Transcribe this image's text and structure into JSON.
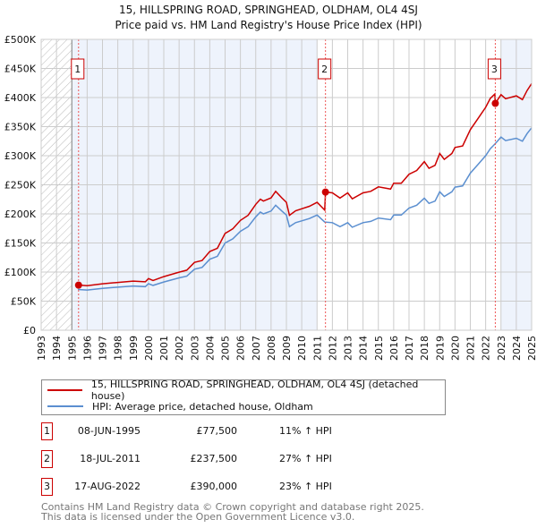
{
  "chart_data": {
    "type": "line",
    "title": "15, HILLSPRING ROAD, SPRINGHEAD, OLDHAM, OL4 4SJ",
    "subtitle": "Price paid vs. HM Land Registry's House Price Index (HPI)",
    "xlim": [
      1993,
      2025
    ],
    "ylim": [
      0,
      500000
    ],
    "x_ticks": [
      "1993",
      "1994",
      "1995",
      "1996",
      "1997",
      "1998",
      "1999",
      "2000",
      "2001",
      "2002",
      "2003",
      "2004",
      "2005",
      "2006",
      "2007",
      "2008",
      "2009",
      "2010",
      "2011",
      "2012",
      "2013",
      "2014",
      "2015",
      "2016",
      "2017",
      "2018",
      "2019",
      "2020",
      "2021",
      "2022",
      "2023",
      "2024",
      "2025"
    ],
    "y_ticks": [
      {
        "v": 0,
        "label": "£0"
      },
      {
        "v": 50000,
        "label": "£50K"
      },
      {
        "v": 100000,
        "label": "£100K"
      },
      {
        "v": 150000,
        "label": "£150K"
      },
      {
        "v": 200000,
        "label": "£200K"
      },
      {
        "v": 250000,
        "label": "£250K"
      },
      {
        "v": 300000,
        "label": "£300K"
      },
      {
        "v": 350000,
        "label": "£350K"
      },
      {
        "v": 400000,
        "label": "£400K"
      },
      {
        "v": 450000,
        "label": "£450K"
      },
      {
        "v": 500000,
        "label": "£500K"
      }
    ],
    "grid": true,
    "hatched_range": [
      1993,
      1995
    ],
    "shaded_ranges": [
      [
        1995,
        2011
      ],
      [
        2023,
        2025
      ]
    ],
    "colors": {
      "property": "#cc0000",
      "hpi": "#5b8fd0",
      "shade": "#eef3fc"
    },
    "series": [
      {
        "name": "15, HILLSPRING ROAD, SPRINGHEAD, OLDHAM, OL4 4SJ (detached house)",
        "color": "#cc0000",
        "points": [
          [
            1995.4,
            77.7
          ],
          [
            1996,
            76.6
          ],
          [
            1997,
            79.9
          ],
          [
            1998,
            82.1
          ],
          [
            1999,
            84.4
          ],
          [
            1999.8,
            83.3
          ],
          [
            2000,
            88.8
          ],
          [
            2000.3,
            85.5
          ],
          [
            2001,
            92.1
          ],
          [
            2002,
            99.9
          ],
          [
            2002.5,
            103.2
          ],
          [
            2003,
            116.6
          ],
          [
            2003.5,
            119.9
          ],
          [
            2004,
            135.4
          ],
          [
            2004.5,
            141
          ],
          [
            2005,
            166.5
          ],
          [
            2005.5,
            174.3
          ],
          [
            2006,
            188.7
          ],
          [
            2006.5,
            197.6
          ],
          [
            2007,
            216.5
          ],
          [
            2007.3,
            225.3
          ],
          [
            2007.5,
            222
          ],
          [
            2008,
            227.6
          ],
          [
            2008.3,
            238.7
          ],
          [
            2008.7,
            227.6
          ],
          [
            2009,
            219.8
          ],
          [
            2009.2,
            197.6
          ],
          [
            2009.6,
            205.4
          ],
          [
            2010,
            208.7
          ],
          [
            2010.5,
            213.1
          ],
          [
            2011,
            219.8
          ],
          [
            2011.5,
            206.5
          ],
          [
            2011.55,
            237.5
          ],
          [
            2012,
            236.2
          ],
          [
            2012.5,
            227.3
          ],
          [
            2013,
            236.2
          ],
          [
            2013.3,
            226
          ],
          [
            2014,
            236.2
          ],
          [
            2014.5,
            238.8
          ],
          [
            2015,
            246.5
          ],
          [
            2015.8,
            242.6
          ],
          [
            2016,
            252.8
          ],
          [
            2016.5,
            252.8
          ],
          [
            2017,
            268.2
          ],
          [
            2017.5,
            274.6
          ],
          [
            2018,
            289.9
          ],
          [
            2018.3,
            278.4
          ],
          [
            2018.7,
            283.5
          ],
          [
            2019,
            303.9
          ],
          [
            2019.3,
            293.7
          ],
          [
            2019.8,
            303.9
          ],
          [
            2020,
            314.1
          ],
          [
            2020.5,
            316.7
          ],
          [
            2021,
            344.8
          ],
          [
            2021.5,
            364
          ],
          [
            2022,
            383.1
          ],
          [
            2022.3,
            398.4
          ],
          [
            2022.6,
            406
          ],
          [
            2022.63,
            390
          ],
          [
            2023,
            405
          ],
          [
            2023.3,
            398
          ],
          [
            2024,
            403
          ],
          [
            2024.4,
            396.5
          ],
          [
            2024.7,
            412
          ],
          [
            2025,
            424
          ]
        ]
      },
      {
        "name": "HPI: Average price, detached house, Oldham",
        "color": "#5b8fd0",
        "points": [
          [
            1995.4,
            70
          ],
          [
            1996,
            69
          ],
          [
            1997,
            72
          ],
          [
            1998,
            74
          ],
          [
            1999,
            76
          ],
          [
            1999.8,
            75
          ],
          [
            2000,
            80
          ],
          [
            2000.3,
            77
          ],
          [
            2001,
            83
          ],
          [
            2002,
            90
          ],
          [
            2002.5,
            93
          ],
          [
            2003,
            105
          ],
          [
            2003.5,
            108
          ],
          [
            2004,
            122
          ],
          [
            2004.5,
            127
          ],
          [
            2005,
            150
          ],
          [
            2005.5,
            157
          ],
          [
            2006,
            170
          ],
          [
            2006.5,
            178
          ],
          [
            2007,
            195
          ],
          [
            2007.3,
            203
          ],
          [
            2007.5,
            200
          ],
          [
            2008,
            205
          ],
          [
            2008.3,
            215
          ],
          [
            2008.7,
            205
          ],
          [
            2009,
            198
          ],
          [
            2009.2,
            178
          ],
          [
            2009.6,
            185
          ],
          [
            2010,
            188
          ],
          [
            2010.5,
            192
          ],
          [
            2011,
            198
          ],
          [
            2011.5,
            186
          ],
          [
            2012,
            185
          ],
          [
            2012.5,
            178
          ],
          [
            2013,
            185
          ],
          [
            2013.3,
            177
          ],
          [
            2014,
            185
          ],
          [
            2014.5,
            187
          ],
          [
            2015,
            193
          ],
          [
            2015.8,
            190
          ],
          [
            2016,
            198
          ],
          [
            2016.5,
            198
          ],
          [
            2017,
            210
          ],
          [
            2017.5,
            215
          ],
          [
            2018,
            227
          ],
          [
            2018.3,
            218
          ],
          [
            2018.7,
            222
          ],
          [
            2019,
            238
          ],
          [
            2019.3,
            230
          ],
          [
            2019.8,
            238
          ],
          [
            2020,
            246
          ],
          [
            2020.5,
            248
          ],
          [
            2021,
            270
          ],
          [
            2021.5,
            285
          ],
          [
            2022,
            300
          ],
          [
            2022.3,
            312
          ],
          [
            2022.6,
            320
          ],
          [
            2023,
            332
          ],
          [
            2023.3,
            326
          ],
          [
            2024,
            330
          ],
          [
            2024.4,
            325
          ],
          [
            2024.7,
            338
          ],
          [
            2025,
            348
          ]
        ]
      }
    ],
    "point_units": "thousands GBP",
    "sales": [
      {
        "label": "1",
        "x": 1995.44,
        "y": 77500
      },
      {
        "label": "2",
        "x": 2011.55,
        "y": 237500
      },
      {
        "label": "3",
        "x": 2022.63,
        "y": 390000
      }
    ]
  },
  "table": [
    {
      "num": "1",
      "date": "08-JUN-1995",
      "price": "£77,500",
      "pct": "11% ↑ HPI"
    },
    {
      "num": "2",
      "date": "18-JUL-2011",
      "price": "£237,500",
      "pct": "27% ↑ HPI"
    },
    {
      "num": "3",
      "date": "17-AUG-2022",
      "price": "£390,000",
      "pct": "23% ↑ HPI"
    }
  ],
  "footer": {
    "line1": "Contains HM Land Registry data © Crown copyright and database right 2025.",
    "line2": "This data is licensed under the Open Government Licence v3.0."
  }
}
